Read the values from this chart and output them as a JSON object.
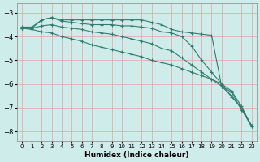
{
  "xlabel": "Humidex (Indice chaleur)",
  "background_color": "#ceecea",
  "grid_color": "#e8a0a0",
  "line_color": "#2e7d6e",
  "xlim": [
    -0.5,
    23.5
  ],
  "ylim": [
    -8.4,
    -2.6
  ],
  "yticks": [
    -8,
    -7,
    -6,
    -5,
    -4,
    -3
  ],
  "xticks": [
    0,
    1,
    2,
    3,
    4,
    5,
    6,
    7,
    8,
    9,
    10,
    11,
    12,
    13,
    14,
    15,
    16,
    17,
    18,
    19,
    20,
    21,
    22,
    23
  ],
  "series": [
    {
      "x": [
        0,
        1,
        2,
        3,
        4,
        5,
        6,
        7,
        8,
        9,
        10,
        11,
        12,
        13,
        14,
        15,
        16,
        17,
        18,
        19,
        20,
        21,
        22,
        23
      ],
      "y": [
        -3.6,
        -3.6,
        -3.3,
        -3.2,
        -3.3,
        -3.3,
        -3.3,
        -3.3,
        -3.3,
        -3.3,
        -3.3,
        -3.3,
        -3.3,
        -3.4,
        -3.5,
        -3.7,
        -3.8,
        -3.85,
        -3.9,
        -3.95,
        -6.1,
        -6.35,
        -7.1,
        -7.75
      ]
    },
    {
      "x": [
        0,
        1,
        2,
        3,
        4,
        5,
        6,
        7,
        8,
        9,
        10,
        11,
        12,
        13,
        14,
        15,
        16,
        17,
        18,
        19,
        20,
        21,
        22,
        23
      ],
      "y": [
        -3.65,
        -3.65,
        -3.3,
        -3.2,
        -3.35,
        -3.4,
        -3.45,
        -3.5,
        -3.5,
        -3.5,
        -3.55,
        -3.55,
        -3.6,
        -3.65,
        -3.8,
        -3.85,
        -4.0,
        -4.4,
        -5.0,
        -5.5,
        -6.0,
        -6.55,
        -7.0,
        -7.75
      ]
    },
    {
      "x": [
        0,
        1,
        2,
        3,
        4,
        5,
        6,
        7,
        8,
        9,
        10,
        11,
        12,
        13,
        14,
        15,
        16,
        17,
        18,
        19,
        20,
        21,
        22,
        23
      ],
      "y": [
        -3.65,
        -3.65,
        -3.55,
        -3.5,
        -3.6,
        -3.65,
        -3.7,
        -3.8,
        -3.85,
        -3.9,
        -4.0,
        -4.1,
        -4.2,
        -4.3,
        -4.5,
        -4.6,
        -4.9,
        -5.2,
        -5.5,
        -5.8,
        -6.1,
        -6.5,
        -7.05,
        -7.8
      ]
    },
    {
      "x": [
        0,
        1,
        2,
        3,
        4,
        5,
        6,
        7,
        8,
        9,
        10,
        11,
        12,
        13,
        14,
        15,
        16,
        17,
        18,
        19,
        20,
        21,
        22,
        23
      ],
      "y": [
        -3.65,
        -3.7,
        -3.8,
        -3.85,
        -4.0,
        -4.1,
        -4.2,
        -4.35,
        -4.45,
        -4.55,
        -4.65,
        -4.75,
        -4.85,
        -5.0,
        -5.1,
        -5.2,
        -5.35,
        -5.5,
        -5.65,
        -5.8,
        -6.0,
        -6.3,
        -6.95,
        -7.8
      ]
    }
  ]
}
